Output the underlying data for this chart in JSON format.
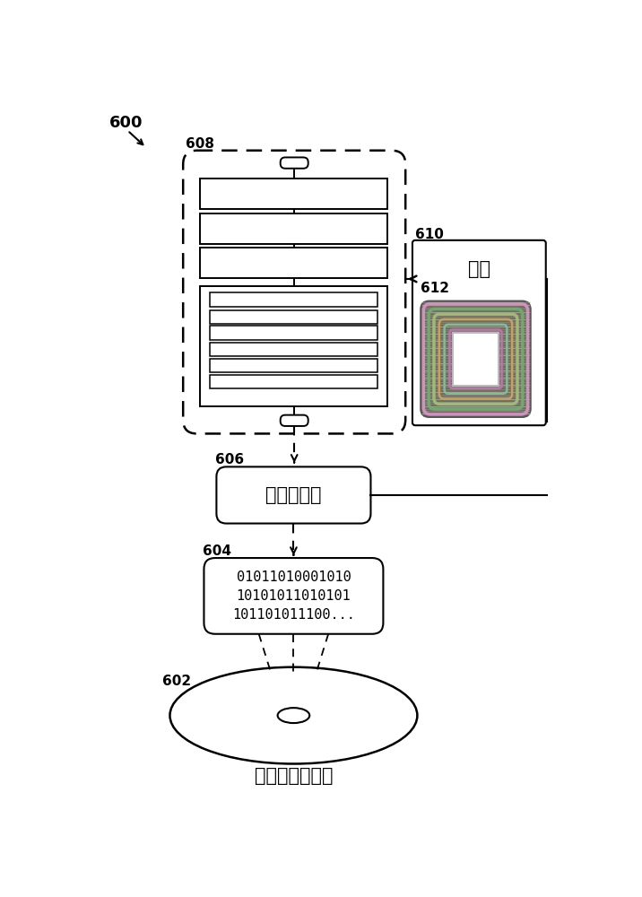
{
  "bg_color": "#ffffff",
  "label_600": "600",
  "label_608": "608",
  "label_610": "610",
  "label_612": "612",
  "label_606": "606",
  "label_604": "604",
  "label_602": "602",
  "text_qijian": "器件",
  "text_jisuanji_zhiling": "计算机指令",
  "text_binary1": "01011010001010",
  "text_binary2": "10101011010101",
  "text_binary3": "101101011100...",
  "text_disk_label": "计算机可读介质",
  "line_color": "#000000",
  "chip_bg": "#7a7a6a",
  "chip_colors": [
    "#c8a0c0",
    "#80b080",
    "#a0c090",
    "#b0a870",
    "#90b8a0"
  ],
  "chip_line_dark": "#404040",
  "chip_line_light": "#e0e0e0"
}
